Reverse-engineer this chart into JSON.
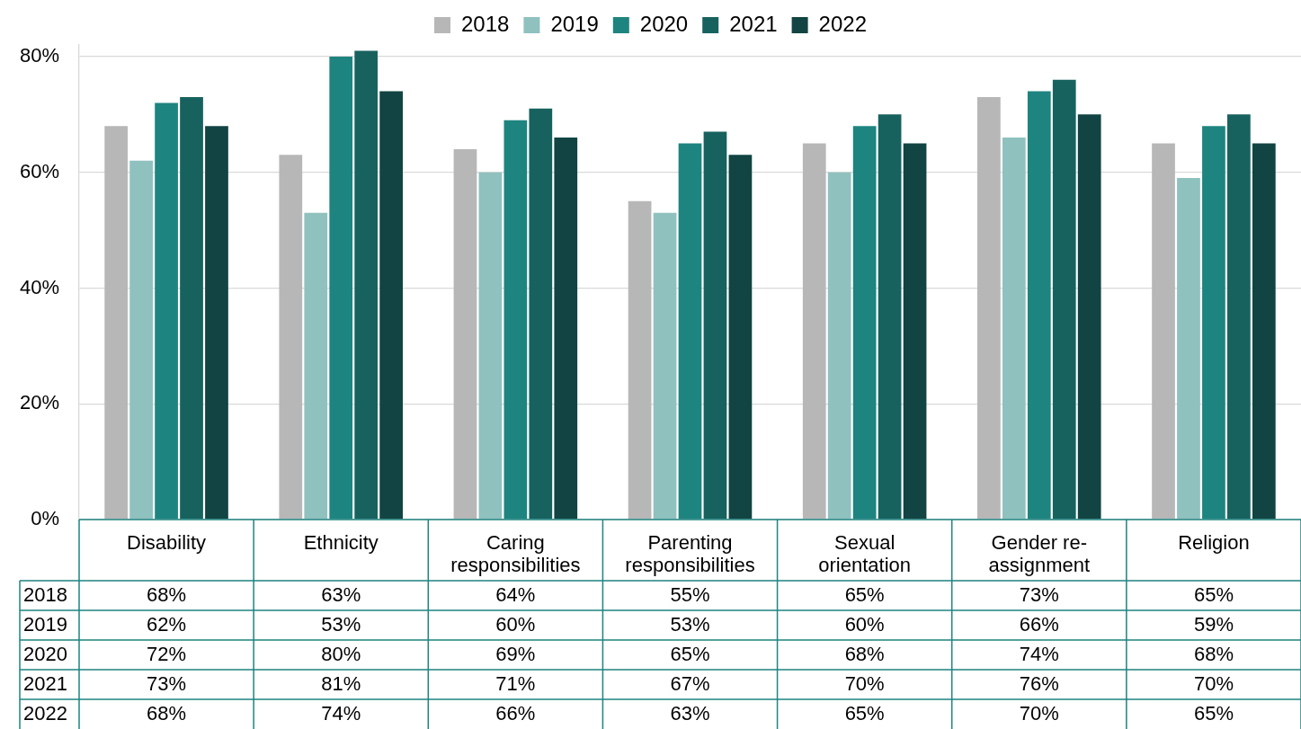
{
  "chart_data": {
    "type": "bar",
    "categories": [
      "Disability",
      "Ethnicity",
      "Caring responsibilities",
      "Parenting responsibilities",
      "Sexual orientation",
      "Gender re-assignment",
      "Religion"
    ],
    "series": [
      {
        "name": "2018",
        "color": "#b7b7b7",
        "values": [
          68,
          63,
          64,
          55,
          65,
          73,
          65
        ],
        "value_labels": [
          "68%",
          "63%",
          "64%",
          "55%",
          "65%",
          "73%",
          "65%"
        ]
      },
      {
        "name": "2019",
        "color": "#8fc1bf",
        "values": [
          62,
          53,
          60,
          53,
          60,
          66,
          59
        ],
        "value_labels": [
          "62%",
          "53%",
          "60%",
          "53%",
          "60%",
          "66%",
          "59%"
        ]
      },
      {
        "name": "2020",
        "color": "#1e8480",
        "values": [
          72,
          80,
          69,
          65,
          68,
          74,
          68
        ],
        "value_labels": [
          "72%",
          "80%",
          "69%",
          "65%",
          "68%",
          "74%",
          "68%"
        ]
      },
      {
        "name": "2021",
        "color": "#17625f",
        "values": [
          73,
          81,
          71,
          67,
          70,
          76,
          70
        ],
        "value_labels": [
          "73%",
          "81%",
          "71%",
          "67%",
          "70%",
          "76%",
          "70%"
        ]
      },
      {
        "name": "2022",
        "color": "#114442",
        "values": [
          68,
          74,
          66,
          63,
          65,
          70,
          65
        ],
        "value_labels": [
          "68%",
          "74%",
          "66%",
          "63%",
          "65%",
          "70%",
          "65%"
        ]
      }
    ],
    "ylim": [
      0,
      82
    ],
    "yticks": [
      {
        "value": 0,
        "label": "0%"
      },
      {
        "value": 20,
        "label": "20%"
      },
      {
        "value": 40,
        "label": "40%"
      },
      {
        "value": 60,
        "label": "60%"
      },
      {
        "value": 80,
        "label": "80%"
      }
    ],
    "grid": "y",
    "legend": "top"
  }
}
